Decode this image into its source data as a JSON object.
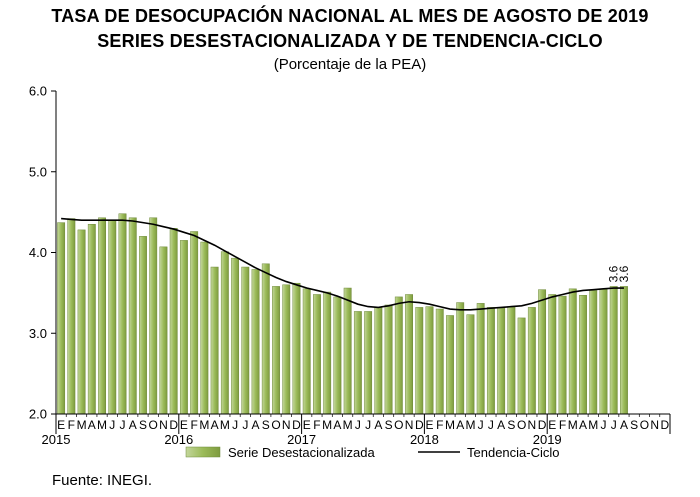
{
  "title": "TASA DE DESOCUPACIÓN NACIONAL AL MES DE AGOSTO DE 2019",
  "subtitle": "SERIES DESESTACIONALIZADA Y DE TENDENCIA-CICLO",
  "unit_note": "(Porcentaje de la PEA)",
  "source": "Fuente: INEGI.",
  "colors": {
    "bars": "#9bbb59",
    "bar_border": "#6f8a3a",
    "trend": "#000000"
  },
  "chart_data": {
    "type": "bar",
    "ylim": [
      2.0,
      6.0
    ],
    "yticks": [
      "2.0",
      "3.0",
      "4.0",
      "5.0",
      "6.0"
    ],
    "month_labels": [
      "E",
      "F",
      "M",
      "A",
      "M",
      "J",
      "J",
      "A",
      "S",
      "O",
      "N",
      "D"
    ],
    "years": [
      "2015",
      "2016",
      "2017",
      "2018",
      "2019"
    ],
    "grid": false,
    "legend_position": "bottom",
    "annotations": [
      "3.6",
      "3.6"
    ],
    "series": [
      {
        "name": "Serie Desestacionalizada",
        "type": "bar",
        "values": [
          4.37,
          4.42,
          4.28,
          4.35,
          4.43,
          4.4,
          4.48,
          4.43,
          4.2,
          4.43,
          4.07,
          4.3,
          4.15,
          4.26,
          4.13,
          3.82,
          4.01,
          3.93,
          3.82,
          3.79,
          3.86,
          3.58,
          3.6,
          3.62,
          3.55,
          3.48,
          3.51,
          3.45,
          3.56,
          3.27,
          3.27,
          3.32,
          3.35,
          3.45,
          3.48,
          3.32,
          3.33,
          3.3,
          3.22,
          3.38,
          3.23,
          3.37,
          3.32,
          3.32,
          3.33,
          3.19,
          3.32,
          3.54,
          3.48,
          3.46,
          3.55,
          3.47,
          3.53,
          3.55,
          3.58,
          3.58
        ]
      },
      {
        "name": "Tendencia-Ciclo",
        "type": "line",
        "values": [
          4.42,
          4.41,
          4.4,
          4.4,
          4.4,
          4.4,
          4.4,
          4.39,
          4.37,
          4.35,
          4.32,
          4.29,
          4.25,
          4.21,
          4.15,
          4.09,
          4.02,
          3.95,
          3.88,
          3.81,
          3.75,
          3.69,
          3.64,
          3.6,
          3.56,
          3.53,
          3.5,
          3.46,
          3.41,
          3.36,
          3.33,
          3.32,
          3.34,
          3.37,
          3.39,
          3.38,
          3.36,
          3.33,
          3.3,
          3.29,
          3.29,
          3.3,
          3.31,
          3.32,
          3.33,
          3.34,
          3.37,
          3.41,
          3.45,
          3.48,
          3.51,
          3.53,
          3.54,
          3.55,
          3.56,
          3.56
        ]
      }
    ]
  }
}
